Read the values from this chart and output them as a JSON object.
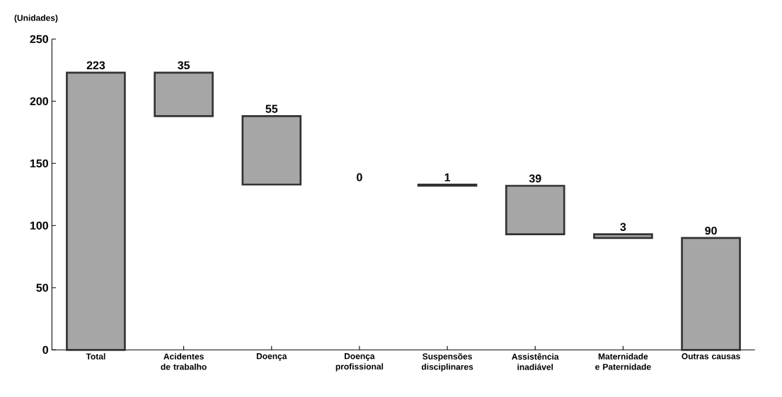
{
  "chart_data": {
    "type": "bar",
    "ylabel": "(Unidades)",
    "categories": [
      "Total",
      "Acidentes de trabalho",
      "Doença",
      "Doença profissional",
      "Suspensões disciplinares",
      "Assistência inadiável",
      "Maternidade e Paternidade",
      "Outras causas"
    ],
    "values": [
      223,
      35,
      55,
      0,
      1,
      39,
      3,
      90
    ],
    "base": [
      0,
      188,
      133,
      null,
      132,
      93,
      90,
      0
    ],
    "value_labels": [
      "223",
      "35",
      "55",
      null,
      "1",
      "39",
      "3",
      "90"
    ],
    "annotations": [
      "0"
    ],
    "color": "#a6a6a6",
    "ylim": [
      0,
      250
    ],
    "yticks": [
      0,
      50,
      100,
      150,
      200,
      250
    ],
    "grid": false
  }
}
